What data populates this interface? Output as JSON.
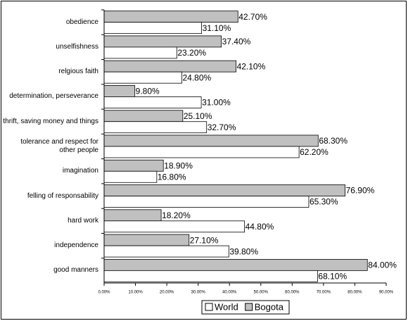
{
  "chart_data": {
    "type": "hbar",
    "categories": [
      "obedience",
      "unselfishness",
      "relgious faith",
      "determination, perseverance",
      "thrift, saving money and things",
      "tolerance and respect for other people",
      "imagination",
      "felling of responsability",
      "hard work",
      "independence",
      "good manners"
    ],
    "series": [
      {
        "name": "World",
        "color": "#ffffff",
        "values": [
          31.1,
          23.2,
          24.8,
          31.0,
          32.7,
          62.2,
          16.8,
          65.3,
          44.8,
          39.8,
          68.1
        ],
        "value_labels": [
          "31.10%",
          "23.20%",
          "24.80%",
          "31.00%",
          "32.70%",
          "62.20%",
          "16.80%",
          "65.30%",
          "44.80%",
          "39.80%",
          "68.10%"
        ]
      },
      {
        "name": "Bogota",
        "color": "#c0c0c0",
        "values": [
          42.7,
          37.4,
          42.1,
          9.8,
          25.1,
          68.3,
          18.9,
          76.9,
          18.2,
          27.1,
          84.0
        ],
        "value_labels": [
          "42.70%",
          "37.40%",
          "42.10%",
          "9.80%",
          "25.10%",
          "68.30%",
          "18.90%",
          "76.90%",
          "18.20%",
          "27.10%",
          "84.00%"
        ]
      }
    ],
    "xlim": [
      0,
      90
    ],
    "xticks": [
      {
        "value": 0,
        "label": "0.00%"
      },
      {
        "value": 10,
        "label": "10.00%"
      },
      {
        "value": 20,
        "label": "20.00%"
      },
      {
        "value": 30,
        "label": "30.00%"
      },
      {
        "value": 40,
        "label": "40.00%"
      },
      {
        "value": 50,
        "label": "50.00%"
      },
      {
        "value": 60,
        "label": "60.00%"
      },
      {
        "value": 70,
        "label": "70.00%"
      },
      {
        "value": 80,
        "label": "80.00%"
      },
      {
        "value": 90,
        "label": "90.00%"
      }
    ],
    "legend": "bottom"
  }
}
